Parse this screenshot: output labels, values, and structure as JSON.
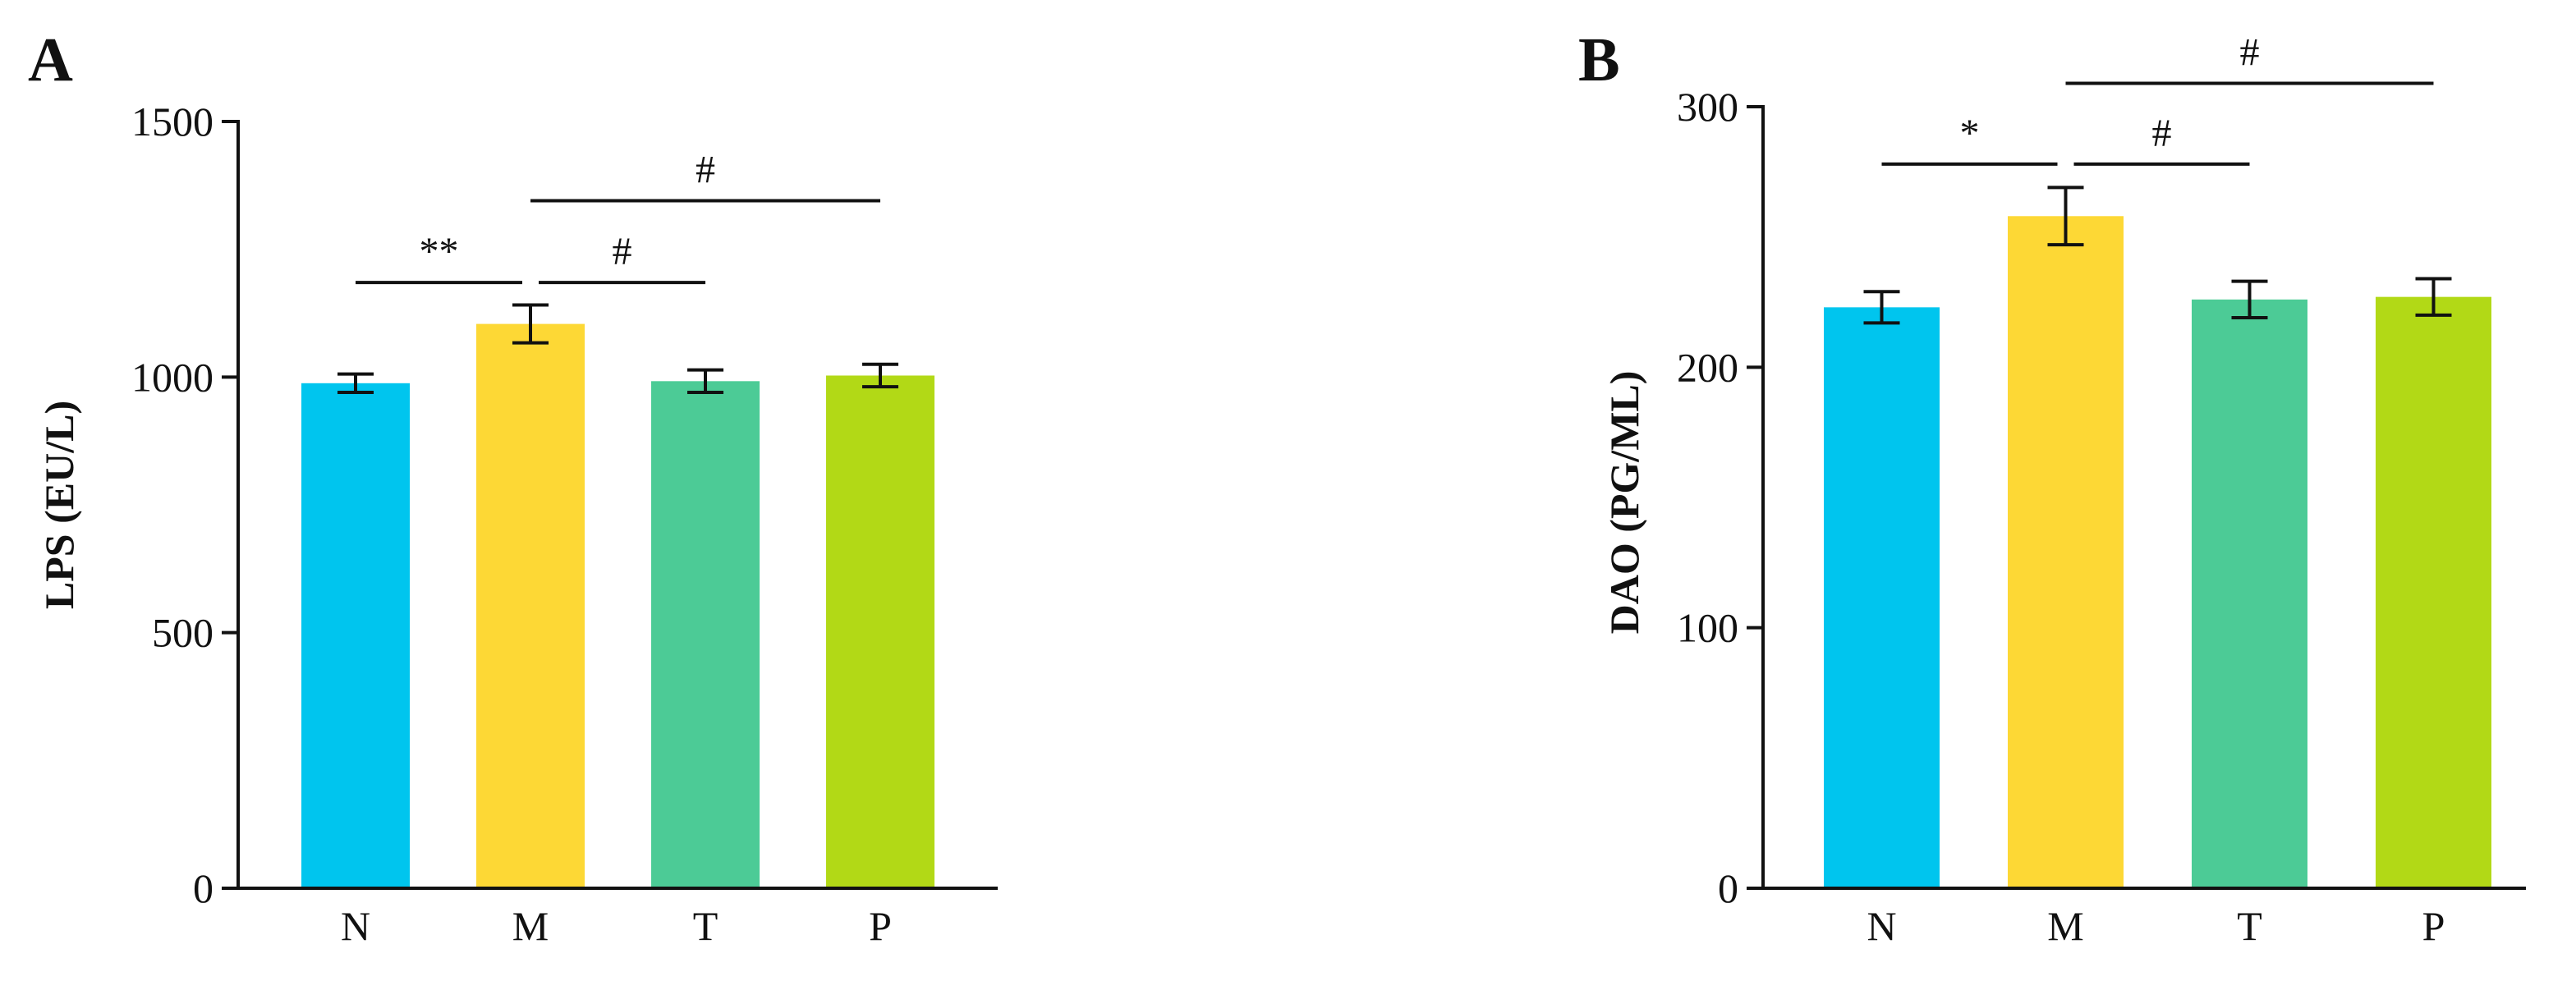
{
  "chart_data": [
    {
      "type": "bar",
      "panel_label": "A",
      "title": "",
      "xlabel": "",
      "ylabel": "LPS (EU/L)",
      "categories": [
        "N",
        "M",
        "T",
        "P"
      ],
      "values": [
        988,
        1104,
        992,
        1003
      ],
      "errors": [
        18,
        37,
        22,
        22
      ],
      "colors": [
        "#00C5EE",
        "#FDD835",
        "#4CCB96",
        "#B2D916"
      ],
      "ylim": [
        0,
        1500
      ],
      "yticks": [
        0,
        500,
        1000,
        1500
      ],
      "grid": false,
      "legend": "none",
      "annotations": [
        {
          "from": "N",
          "to": "M",
          "label": "**",
          "y": 1185
        },
        {
          "from": "M",
          "to": "T",
          "label": "#",
          "y": 1185
        },
        {
          "from": "M",
          "to": "P",
          "label": "#",
          "y": 1345
        }
      ]
    },
    {
      "type": "bar",
      "panel_label": "B",
      "title": "",
      "xlabel": "",
      "ylabel": "DAO (PG/ML)",
      "categories": [
        "N",
        "M",
        "T",
        "P"
      ],
      "values": [
        223,
        258,
        226,
        227
      ],
      "errors": [
        6,
        11,
        7,
        7
      ],
      "colors": [
        "#00C5EE",
        "#FDD835",
        "#4CCB96",
        "#B2D916"
      ],
      "ylim": [
        0,
        300
      ],
      "yticks": [
        0,
        100,
        200,
        300
      ],
      "grid": false,
      "legend": "none",
      "annotations": [
        {
          "from": "N",
          "to": "M",
          "label": "*",
          "y": 278
        },
        {
          "from": "M",
          "to": "T",
          "label": "#",
          "y": 278
        },
        {
          "from": "M",
          "to": "P",
          "label": "#",
          "y": 309
        }
      ]
    }
  ]
}
